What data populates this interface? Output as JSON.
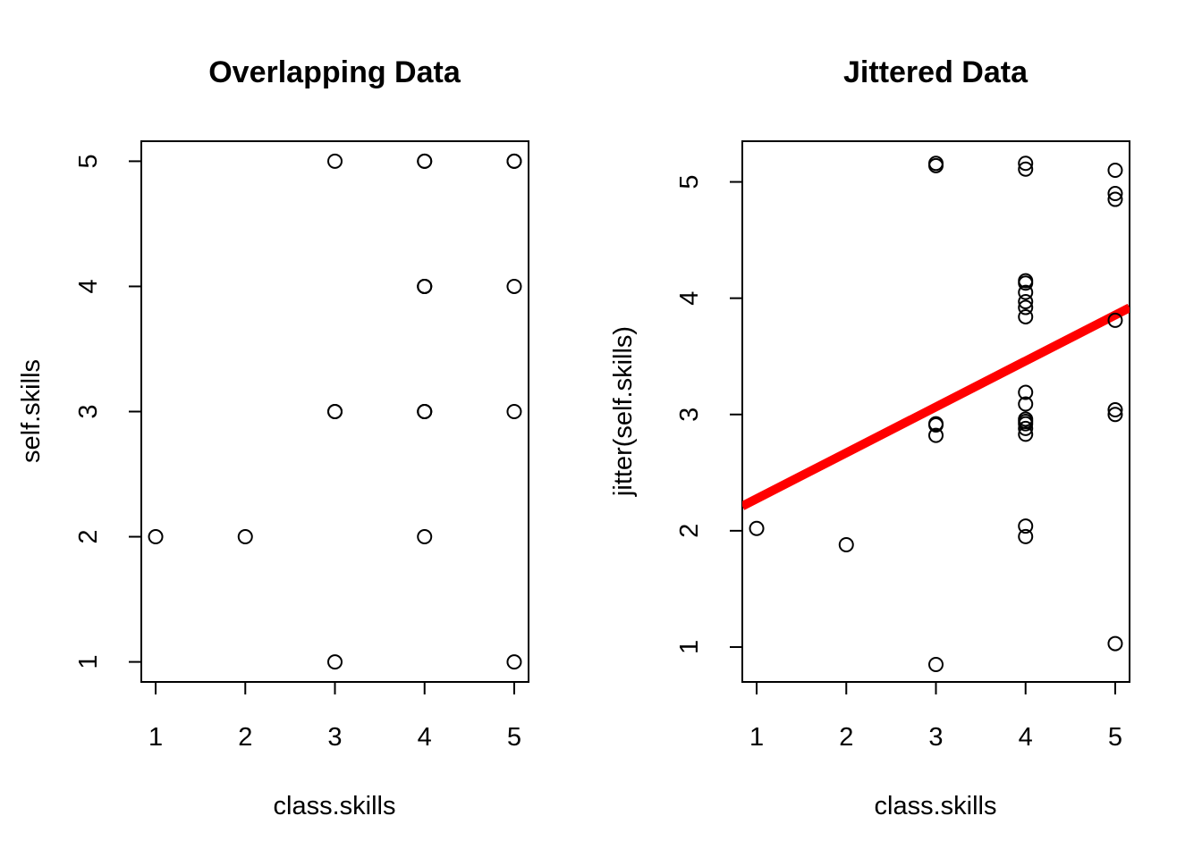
{
  "chart_data": [
    {
      "type": "scatter",
      "title": "Overlapping Data",
      "xlabel": "class.skills",
      "ylabel": "self.skills",
      "xlim": [
        0.84,
        5.16
      ],
      "ylim": [
        0.84,
        5.16
      ],
      "xticks": [
        1,
        2,
        3,
        4,
        5
      ],
      "yticks": [
        1,
        2,
        3,
        4,
        5
      ],
      "points": [
        {
          "x": 1,
          "y": 2
        },
        {
          "x": 2,
          "y": 2
        },
        {
          "x": 3,
          "y": 5
        },
        {
          "x": 3,
          "y": 3
        },
        {
          "x": 3,
          "y": 3
        },
        {
          "x": 3,
          "y": 1
        },
        {
          "x": 4,
          "y": 5
        },
        {
          "x": 4,
          "y": 5
        },
        {
          "x": 4,
          "y": 4
        },
        {
          "x": 4,
          "y": 4
        },
        {
          "x": 4,
          "y": 4
        },
        {
          "x": 4,
          "y": 3
        },
        {
          "x": 4,
          "y": 3
        },
        {
          "x": 4,
          "y": 3
        },
        {
          "x": 4,
          "y": 2
        },
        {
          "x": 5,
          "y": 5
        },
        {
          "x": 5,
          "y": 5
        },
        {
          "x": 5,
          "y": 4
        },
        {
          "x": 5,
          "y": 3
        },
        {
          "x": 5,
          "y": 1
        }
      ],
      "grid": false
    },
    {
      "type": "scatter",
      "title": "Jittered Data",
      "xlabel": "class.skills",
      "ylabel": "jitter(self.skills)",
      "xlim": [
        0.84,
        5.16
      ],
      "ylim": [
        0.7,
        5.35
      ],
      "xticks": [
        1,
        2,
        3,
        4,
        5
      ],
      "yticks": [
        1,
        2,
        3,
        4,
        5
      ],
      "points": [
        {
          "x": 1,
          "y": 2.02
        },
        {
          "x": 2,
          "y": 1.88
        },
        {
          "x": 3,
          "y": 5.16
        },
        {
          "x": 3,
          "y": 5.14
        },
        {
          "x": 3,
          "y": 2.92
        },
        {
          "x": 3,
          "y": 2.91
        },
        {
          "x": 3,
          "y": 2.82
        },
        {
          "x": 3,
          "y": 0.85
        },
        {
          "x": 4,
          "y": 5.16
        },
        {
          "x": 4,
          "y": 5.11
        },
        {
          "x": 4,
          "y": 4.15
        },
        {
          "x": 4,
          "y": 4.13
        },
        {
          "x": 4,
          "y": 4.05
        },
        {
          "x": 4,
          "y": 3.97
        },
        {
          "x": 4,
          "y": 3.92
        },
        {
          "x": 4,
          "y": 3.84
        },
        {
          "x": 4,
          "y": 3.19
        },
        {
          "x": 4,
          "y": 3.09
        },
        {
          "x": 4,
          "y": 2.96
        },
        {
          "x": 4,
          "y": 2.94
        },
        {
          "x": 4,
          "y": 2.92
        },
        {
          "x": 4,
          "y": 2.88
        },
        {
          "x": 4,
          "y": 2.83
        },
        {
          "x": 4,
          "y": 2.04
        },
        {
          "x": 4,
          "y": 1.95
        },
        {
          "x": 5,
          "y": 5.1
        },
        {
          "x": 5,
          "y": 4.9
        },
        {
          "x": 5,
          "y": 4.85
        },
        {
          "x": 5,
          "y": 3.81
        },
        {
          "x": 5,
          "y": 3.04
        },
        {
          "x": 5,
          "y": 3.0
        },
        {
          "x": 5,
          "y": 1.03
        }
      ],
      "fit_line": {
        "intercept": 1.88,
        "slope": 0.395,
        "color": "#ff0000"
      },
      "grid": false
    }
  ]
}
